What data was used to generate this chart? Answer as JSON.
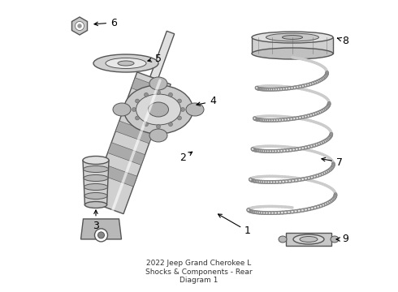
{
  "title": "2022 Jeep Grand Cherokee L\nShocks & Components - Rear\nDiagram 1",
  "background_color": "#ffffff",
  "line_color": "#555555",
  "label_color": "#000000",
  "label_fontsize": 9,
  "title_fontsize": 6.5,
  "shock_color": "#d8d8d8",
  "shock_dark": "#888888",
  "spring_color": "#aaaaaa",
  "mount_color": "#c8c8c8"
}
